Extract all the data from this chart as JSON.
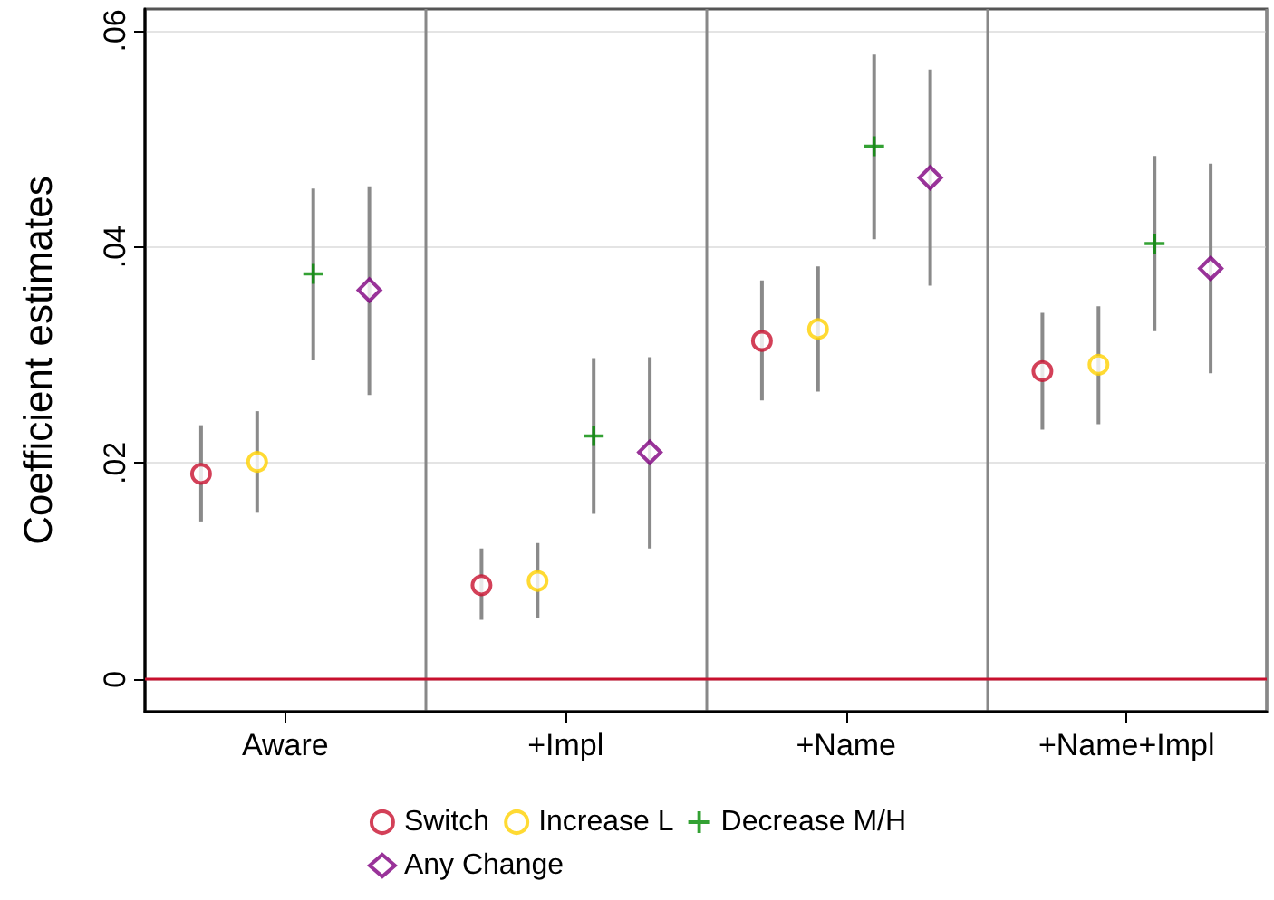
{
  "chart_data": {
    "type": "scatter",
    "ylabel": "Coefficient estimates",
    "categories": [
      "Aware",
      "+Impl",
      "+Name",
      "+Name+Impl"
    ],
    "ylim": [
      -0.003,
      0.062
    ],
    "yticks": [
      {
        "value": 0,
        "label": "0"
      },
      {
        "value": 0.02,
        "label": ".02"
      },
      {
        "value": 0.04,
        "label": ".04"
      },
      {
        "value": 0.06,
        "label": ".06"
      }
    ],
    "grid": true,
    "legend": "bottom",
    "ref_lines": [
      {
        "axis": "y",
        "value": 0,
        "color": "#c8102e"
      }
    ],
    "series": [
      {
        "name": "Switch",
        "color": "#c8102e",
        "marker": "circle",
        "values": [
          0.019,
          0.0087,
          0.0313,
          0.0285
        ],
        "errors": [
          [
            0.0146,
            0.0235
          ],
          [
            0.0055,
            0.0121
          ],
          [
            0.0258,
            0.0369
          ],
          [
            0.0231,
            0.0339
          ]
        ]
      },
      {
        "name": "Increase L",
        "color": "#ffd100",
        "marker": "circle",
        "values": [
          0.0201,
          0.0091,
          0.0324,
          0.0291
        ],
        "errors": [
          [
            0.0154,
            0.0248
          ],
          [
            0.0057,
            0.0126
          ],
          [
            0.0266,
            0.0382
          ],
          [
            0.0236,
            0.0345
          ]
        ]
      },
      {
        "name": "Decrease M/H",
        "color": "#008a00",
        "marker": "cross",
        "values": [
          0.0375,
          0.0225,
          0.0493,
          0.0403
        ],
        "errors": [
          [
            0.0295,
            0.0454
          ],
          [
            0.0153,
            0.0297
          ],
          [
            0.0407,
            0.0578
          ],
          [
            0.0322,
            0.0484
          ]
        ]
      },
      {
        "name": "Any Change",
        "color": "#800080",
        "marker": "diamond",
        "values": [
          0.036,
          0.021,
          0.0464,
          0.038
        ],
        "errors": [
          [
            0.0263,
            0.0456
          ],
          [
            0.0121,
            0.0298
          ],
          [
            0.0364,
            0.0564
          ],
          [
            0.0283,
            0.0477
          ]
        ]
      }
    ]
  }
}
